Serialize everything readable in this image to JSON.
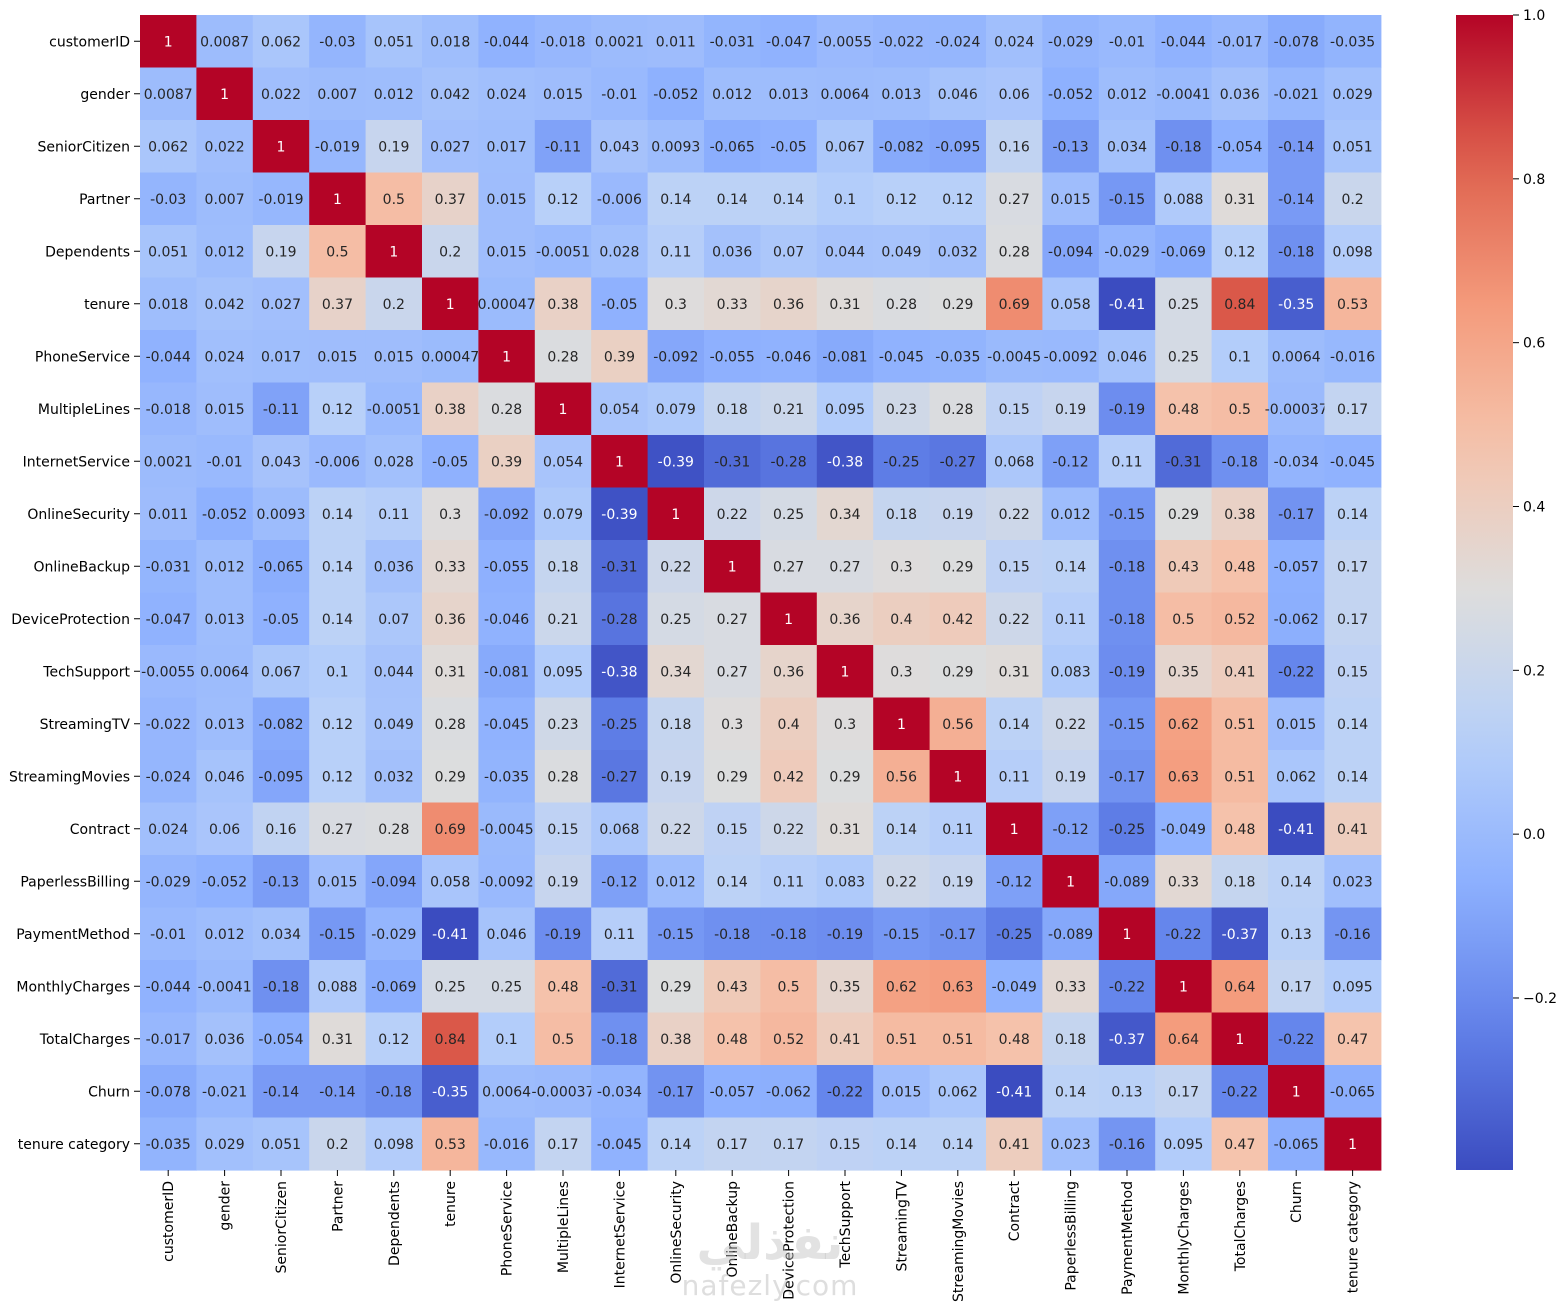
{
  "chart_data": {
    "type": "heatmap",
    "colormap": "coolwarm",
    "variables": [
      "customerID",
      "gender",
      "SeniorCitizen",
      "Partner",
      "Dependents",
      "tenure",
      "PhoneService",
      "MultipleLines",
      "InternetService",
      "OnlineSecurity",
      "OnlineBackup",
      "DeviceProtection",
      "TechSupport",
      "StreamingTV",
      "StreamingMovies",
      "Contract",
      "PaperlessBilling",
      "PaymentMethod",
      "MonthlyCharges",
      "TotalCharges",
      "Churn",
      "tenure category"
    ],
    "cell_labels": [
      [
        "1",
        "0.0087",
        "0.062",
        "-0.03",
        "0.051",
        "0.018",
        "-0.044",
        "-0.018",
        "0.0021",
        "0.011",
        "-0.031",
        "-0.047",
        "-0.0055",
        "-0.022",
        "-0.024",
        "0.024",
        "-0.029",
        "-0.01",
        "-0.044",
        "-0.017",
        "-0.078",
        "-0.035"
      ],
      [
        "0.0087",
        "1",
        "0.022",
        "0.007",
        "0.012",
        "0.042",
        "0.024",
        "0.015",
        "-0.01",
        "-0.052",
        "0.012",
        "0.013",
        "0.0064",
        "0.013",
        "0.046",
        "0.06",
        "-0.052",
        "0.012",
        "-0.0041",
        "0.036",
        "-0.021",
        "0.029"
      ],
      [
        "0.062",
        "0.022",
        "1",
        "-0.019",
        "0.19",
        "0.027",
        "0.017",
        "-0.11",
        "0.043",
        "0.0093",
        "-0.065",
        "-0.05",
        "0.067",
        "-0.082",
        "-0.095",
        "0.16",
        "-0.13",
        "0.034",
        "-0.18",
        "-0.054",
        "-0.14",
        "0.051"
      ],
      [
        "-0.03",
        "0.007",
        "-0.019",
        "1",
        "0.5",
        "0.37",
        "0.015",
        "0.12",
        "-0.006",
        "0.14",
        "0.14",
        "0.14",
        "0.1",
        "0.12",
        "0.12",
        "0.27",
        "0.015",
        "-0.15",
        "0.088",
        "0.31",
        "-0.14",
        "0.2"
      ],
      [
        "0.051",
        "0.012",
        "0.19",
        "0.5",
        "1",
        "0.2",
        "0.015",
        "-0.0051",
        "0.028",
        "0.11",
        "0.036",
        "0.07",
        "0.044",
        "0.049",
        "0.032",
        "0.28",
        "-0.094",
        "-0.029",
        "-0.069",
        "0.12",
        "-0.18",
        "0.098"
      ],
      [
        "0.018",
        "0.042",
        "0.027",
        "0.37",
        "0.2",
        "1",
        "0.00047",
        "0.38",
        "-0.05",
        "0.3",
        "0.33",
        "0.36",
        "0.31",
        "0.28",
        "0.29",
        "0.69",
        "0.058",
        "-0.41",
        "0.25",
        "0.84",
        "-0.35",
        "0.53"
      ],
      [
        "-0.044",
        "0.024",
        "0.017",
        "0.015",
        "0.015",
        "0.00047",
        "1",
        "0.28",
        "0.39",
        "-0.092",
        "-0.055",
        "-0.046",
        "-0.081",
        "-0.045",
        "-0.035",
        "-0.0045",
        "-0.0092",
        "0.046",
        "0.25",
        "0.1",
        "0.0064",
        "-0.016"
      ],
      [
        "-0.018",
        "0.015",
        "-0.11",
        "0.12",
        "-0.0051",
        "0.38",
        "0.28",
        "1",
        "0.054",
        "0.079",
        "0.18",
        "0.21",
        "0.095",
        "0.23",
        "0.28",
        "0.15",
        "0.19",
        "-0.19",
        "0.48",
        "0.5",
        "-0.00037",
        "0.17"
      ],
      [
        "0.0021",
        "-0.01",
        "0.043",
        "-0.006",
        "0.028",
        "-0.05",
        "0.39",
        "0.054",
        "1",
        "-0.39",
        "-0.31",
        "-0.28",
        "-0.38",
        "-0.25",
        "-0.27",
        "0.068",
        "-0.12",
        "0.11",
        "-0.31",
        "-0.18",
        "-0.034",
        "-0.045"
      ],
      [
        "0.011",
        "-0.052",
        "0.0093",
        "0.14",
        "0.11",
        "0.3",
        "-0.092",
        "0.079",
        "-0.39",
        "1",
        "0.22",
        "0.25",
        "0.34",
        "0.18",
        "0.19",
        "0.22",
        "0.012",
        "-0.15",
        "0.29",
        "0.38",
        "-0.17",
        "0.14"
      ],
      [
        "-0.031",
        "0.012",
        "-0.065",
        "0.14",
        "0.036",
        "0.33",
        "-0.055",
        "0.18",
        "-0.31",
        "0.22",
        "1",
        "0.27",
        "0.27",
        "0.3",
        "0.29",
        "0.15",
        "0.14",
        "-0.18",
        "0.43",
        "0.48",
        "-0.057",
        "0.17"
      ],
      [
        "-0.047",
        "0.013",
        "-0.05",
        "0.14",
        "0.07",
        "0.36",
        "-0.046",
        "0.21",
        "-0.28",
        "0.25",
        "0.27",
        "1",
        "0.36",
        "0.4",
        "0.42",
        "0.22",
        "0.11",
        "-0.18",
        "0.5",
        "0.52",
        "-0.062",
        "0.17"
      ],
      [
        "-0.0055",
        "0.0064",
        "0.067",
        "0.1",
        "0.044",
        "0.31",
        "-0.081",
        "0.095",
        "-0.38",
        "0.34",
        "0.27",
        "0.36",
        "1",
        "0.3",
        "0.29",
        "0.31",
        "0.083",
        "-0.19",
        "0.35",
        "0.41",
        "-0.22",
        "0.15"
      ],
      [
        "-0.022",
        "0.013",
        "-0.082",
        "0.12",
        "0.049",
        "0.28",
        "-0.045",
        "0.23",
        "-0.25",
        "0.18",
        "0.3",
        "0.4",
        "0.3",
        "1",
        "0.56",
        "0.14",
        "0.22",
        "-0.15",
        "0.62",
        "0.51",
        "0.015",
        "0.14"
      ],
      [
        "-0.024",
        "0.046",
        "-0.095",
        "0.12",
        "0.032",
        "0.29",
        "-0.035",
        "0.28",
        "-0.27",
        "0.19",
        "0.29",
        "0.42",
        "0.29",
        "0.56",
        "1",
        "0.11",
        "0.19",
        "-0.17",
        "0.63",
        "0.51",
        "0.062",
        "0.14"
      ],
      [
        "0.024",
        "0.06",
        "0.16",
        "0.27",
        "0.28",
        "0.69",
        "-0.0045",
        "0.15",
        "0.068",
        "0.22",
        "0.15",
        "0.22",
        "0.31",
        "0.14",
        "0.11",
        "1",
        "-0.12",
        "-0.25",
        "-0.049",
        "0.48",
        "-0.41",
        "0.41"
      ],
      [
        "-0.029",
        "-0.052",
        "-0.13",
        "0.015",
        "-0.094",
        "0.058",
        "-0.0092",
        "0.19",
        "-0.12",
        "0.012",
        "0.14",
        "0.11",
        "0.083",
        "0.22",
        "0.19",
        "-0.12",
        "1",
        "-0.089",
        "0.33",
        "0.18",
        "0.14",
        "0.023"
      ],
      [
        "-0.01",
        "0.012",
        "0.034",
        "-0.15",
        "-0.029",
        "-0.41",
        "0.046",
        "-0.19",
        "0.11",
        "-0.15",
        "-0.18",
        "-0.18",
        "-0.19",
        "-0.15",
        "-0.17",
        "-0.25",
        "-0.089",
        "1",
        "-0.22",
        "-0.37",
        "0.13",
        "-0.16"
      ],
      [
        "-0.044",
        "-0.0041",
        "-0.18",
        "0.088",
        "-0.069",
        "0.25",
        "0.25",
        "0.48",
        "-0.31",
        "0.29",
        "0.43",
        "0.5",
        "0.35",
        "0.62",
        "0.63",
        "-0.049",
        "0.33",
        "-0.22",
        "1",
        "0.64",
        "0.17",
        "0.095"
      ],
      [
        "-0.017",
        "0.036",
        "-0.054",
        "0.31",
        "0.12",
        "0.84",
        "0.1",
        "0.5",
        "-0.18",
        "0.38",
        "0.48",
        "0.52",
        "0.41",
        "0.51",
        "0.51",
        "0.48",
        "0.18",
        "-0.37",
        "0.64",
        "1",
        "-0.22",
        "0.47"
      ],
      [
        "-0.078",
        "-0.021",
        "-0.14",
        "-0.14",
        "-0.18",
        "-0.35",
        "0.0064",
        "-0.00037",
        "-0.034",
        "-0.17",
        "-0.057",
        "-0.062",
        "-0.22",
        "0.015",
        "0.062",
        "-0.41",
        "0.14",
        "0.13",
        "0.17",
        "-0.22",
        "1",
        "-0.065"
      ],
      [
        "-0.035",
        "0.029",
        "0.051",
        "0.2",
        "0.098",
        "0.53",
        "-0.016",
        "0.17",
        "-0.045",
        "0.14",
        "0.17",
        "0.17",
        "0.15",
        "0.14",
        "0.14",
        "0.41",
        "0.023",
        "-0.16",
        "0.095",
        "0.47",
        "-0.065",
        "1"
      ]
    ],
    "colorbar": {
      "vmin": -0.41,
      "vmax": 1.0,
      "tick_values": [
        -0.2,
        0,
        0.2,
        0.4,
        0.6,
        0.8,
        1.0
      ],
      "tick_labels": [
        "−0.2",
        "0.0",
        "0.2",
        "0.4",
        "0.6",
        "0.8",
        "1.0"
      ]
    },
    "title": "",
    "xlabel": "",
    "ylabel": ""
  },
  "watermark": {
    "script": "نفذلي",
    "text": "nafezly.com"
  }
}
